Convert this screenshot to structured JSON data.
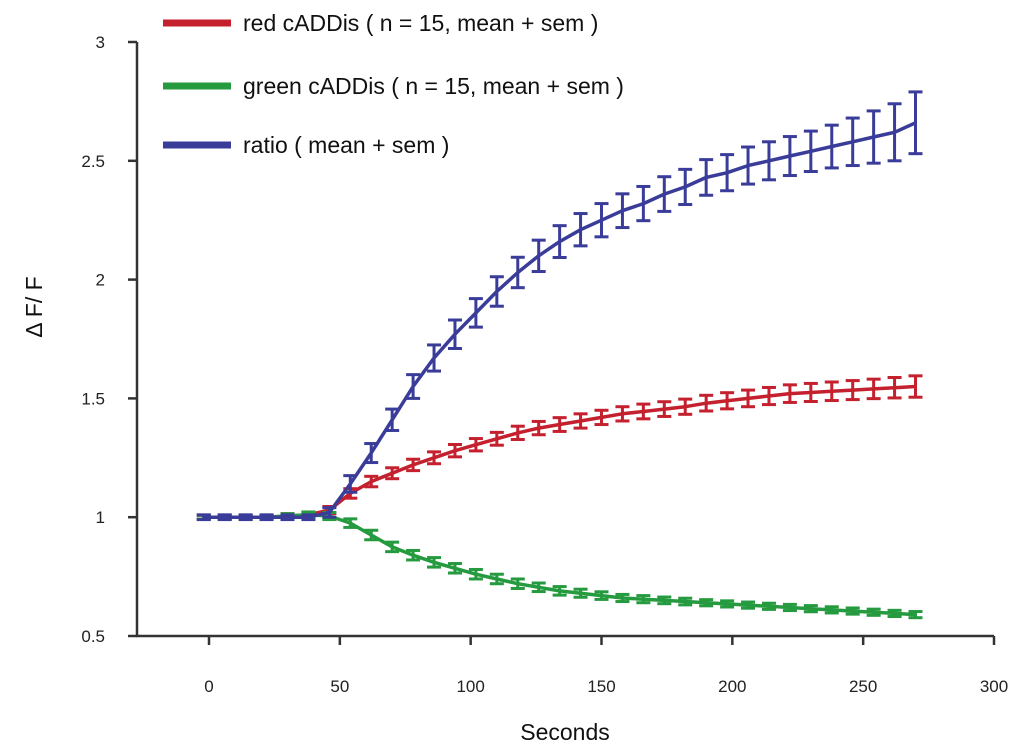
{
  "chart_data": {
    "type": "line",
    "xlabel": "Seconds",
    "ylabel": "Δ F/ F",
    "xlim": [
      -30,
      300
    ],
    "ylim": [
      0.5,
      3
    ],
    "xticks": [
      0,
      50,
      100,
      150,
      200,
      250,
      300
    ],
    "yticks": [
      0.5,
      1,
      1.5,
      2,
      2.5,
      3
    ],
    "xtick_labels": [
      "0",
      "50",
      "100",
      "150",
      "200",
      "250",
      "300"
    ],
    "ytick_labels": [
      "0.5",
      "1",
      "1.5",
      "2",
      "2.5",
      "3"
    ],
    "legend_position": "top-left",
    "grid": false,
    "x": [
      -2,
      6,
      14,
      22,
      30,
      38,
      46,
      54,
      62,
      70,
      78,
      86,
      94,
      102,
      110,
      118,
      126,
      134,
      142,
      150,
      158,
      166,
      174,
      182,
      190,
      198,
      206,
      214,
      222,
      230,
      238,
      246,
      254,
      262,
      270
    ],
    "series": [
      {
        "name": "red cADDis ( n = 15, mean + sem )",
        "color": "#c4202e",
        "values": [
          1.0,
          1.0,
          1.0,
          1.0,
          1.005,
          1.01,
          1.03,
          1.1,
          1.15,
          1.185,
          1.22,
          1.25,
          1.28,
          1.305,
          1.33,
          1.355,
          1.375,
          1.39,
          1.405,
          1.42,
          1.435,
          1.445,
          1.455,
          1.465,
          1.48,
          1.49,
          1.5,
          1.51,
          1.52,
          1.525,
          1.53,
          1.535,
          1.54,
          1.545,
          1.55
        ],
        "sem": [
          0.008,
          0.008,
          0.008,
          0.008,
          0.01,
          0.012,
          0.015,
          0.02,
          0.022,
          0.023,
          0.024,
          0.025,
          0.026,
          0.026,
          0.027,
          0.028,
          0.028,
          0.029,
          0.03,
          0.03,
          0.03,
          0.031,
          0.031,
          0.032,
          0.033,
          0.034,
          0.035,
          0.036,
          0.037,
          0.038,
          0.039,
          0.04,
          0.041,
          0.043,
          0.045
        ]
      },
      {
        "name": "green cADDis ( n = 15, mean + sem )",
        "color": "#259a3f",
        "values": [
          1.0,
          1.0,
          1.0,
          1.0,
          1.005,
          1.01,
          1.005,
          0.975,
          0.925,
          0.875,
          0.84,
          0.81,
          0.785,
          0.76,
          0.74,
          0.72,
          0.705,
          0.69,
          0.68,
          0.67,
          0.66,
          0.655,
          0.65,
          0.645,
          0.64,
          0.635,
          0.63,
          0.625,
          0.62,
          0.615,
          0.61,
          0.605,
          0.6,
          0.595,
          0.59
        ],
        "sem": [
          0.008,
          0.008,
          0.008,
          0.008,
          0.01,
          0.012,
          0.015,
          0.018,
          0.02,
          0.02,
          0.02,
          0.02,
          0.02,
          0.02,
          0.02,
          0.02,
          0.018,
          0.018,
          0.017,
          0.016,
          0.015,
          0.015,
          0.014,
          0.014,
          0.013,
          0.013,
          0.013,
          0.013,
          0.013,
          0.013,
          0.013,
          0.013,
          0.013,
          0.013,
          0.013
        ]
      },
      {
        "name": "ratio ( mean + sem )",
        "color": "#3a3c99",
        "values": [
          1.0,
          1.0,
          1.0,
          1.0,
          1.0,
          1.0,
          1.02,
          1.14,
          1.27,
          1.41,
          1.55,
          1.67,
          1.77,
          1.86,
          1.95,
          2.03,
          2.1,
          2.16,
          2.21,
          2.25,
          2.29,
          2.32,
          2.36,
          2.39,
          2.43,
          2.45,
          2.48,
          2.5,
          2.52,
          2.54,
          2.56,
          2.58,
          2.6,
          2.62,
          2.66
        ],
        "sem": [
          0.01,
          0.01,
          0.01,
          0.01,
          0.01,
          0.01,
          0.02,
          0.035,
          0.04,
          0.045,
          0.05,
          0.055,
          0.06,
          0.06,
          0.062,
          0.064,
          0.066,
          0.067,
          0.068,
          0.07,
          0.071,
          0.072,
          0.073,
          0.074,
          0.075,
          0.076,
          0.078,
          0.08,
          0.082,
          0.085,
          0.09,
          0.1,
          0.11,
          0.12,
          0.13
        ]
      }
    ]
  }
}
